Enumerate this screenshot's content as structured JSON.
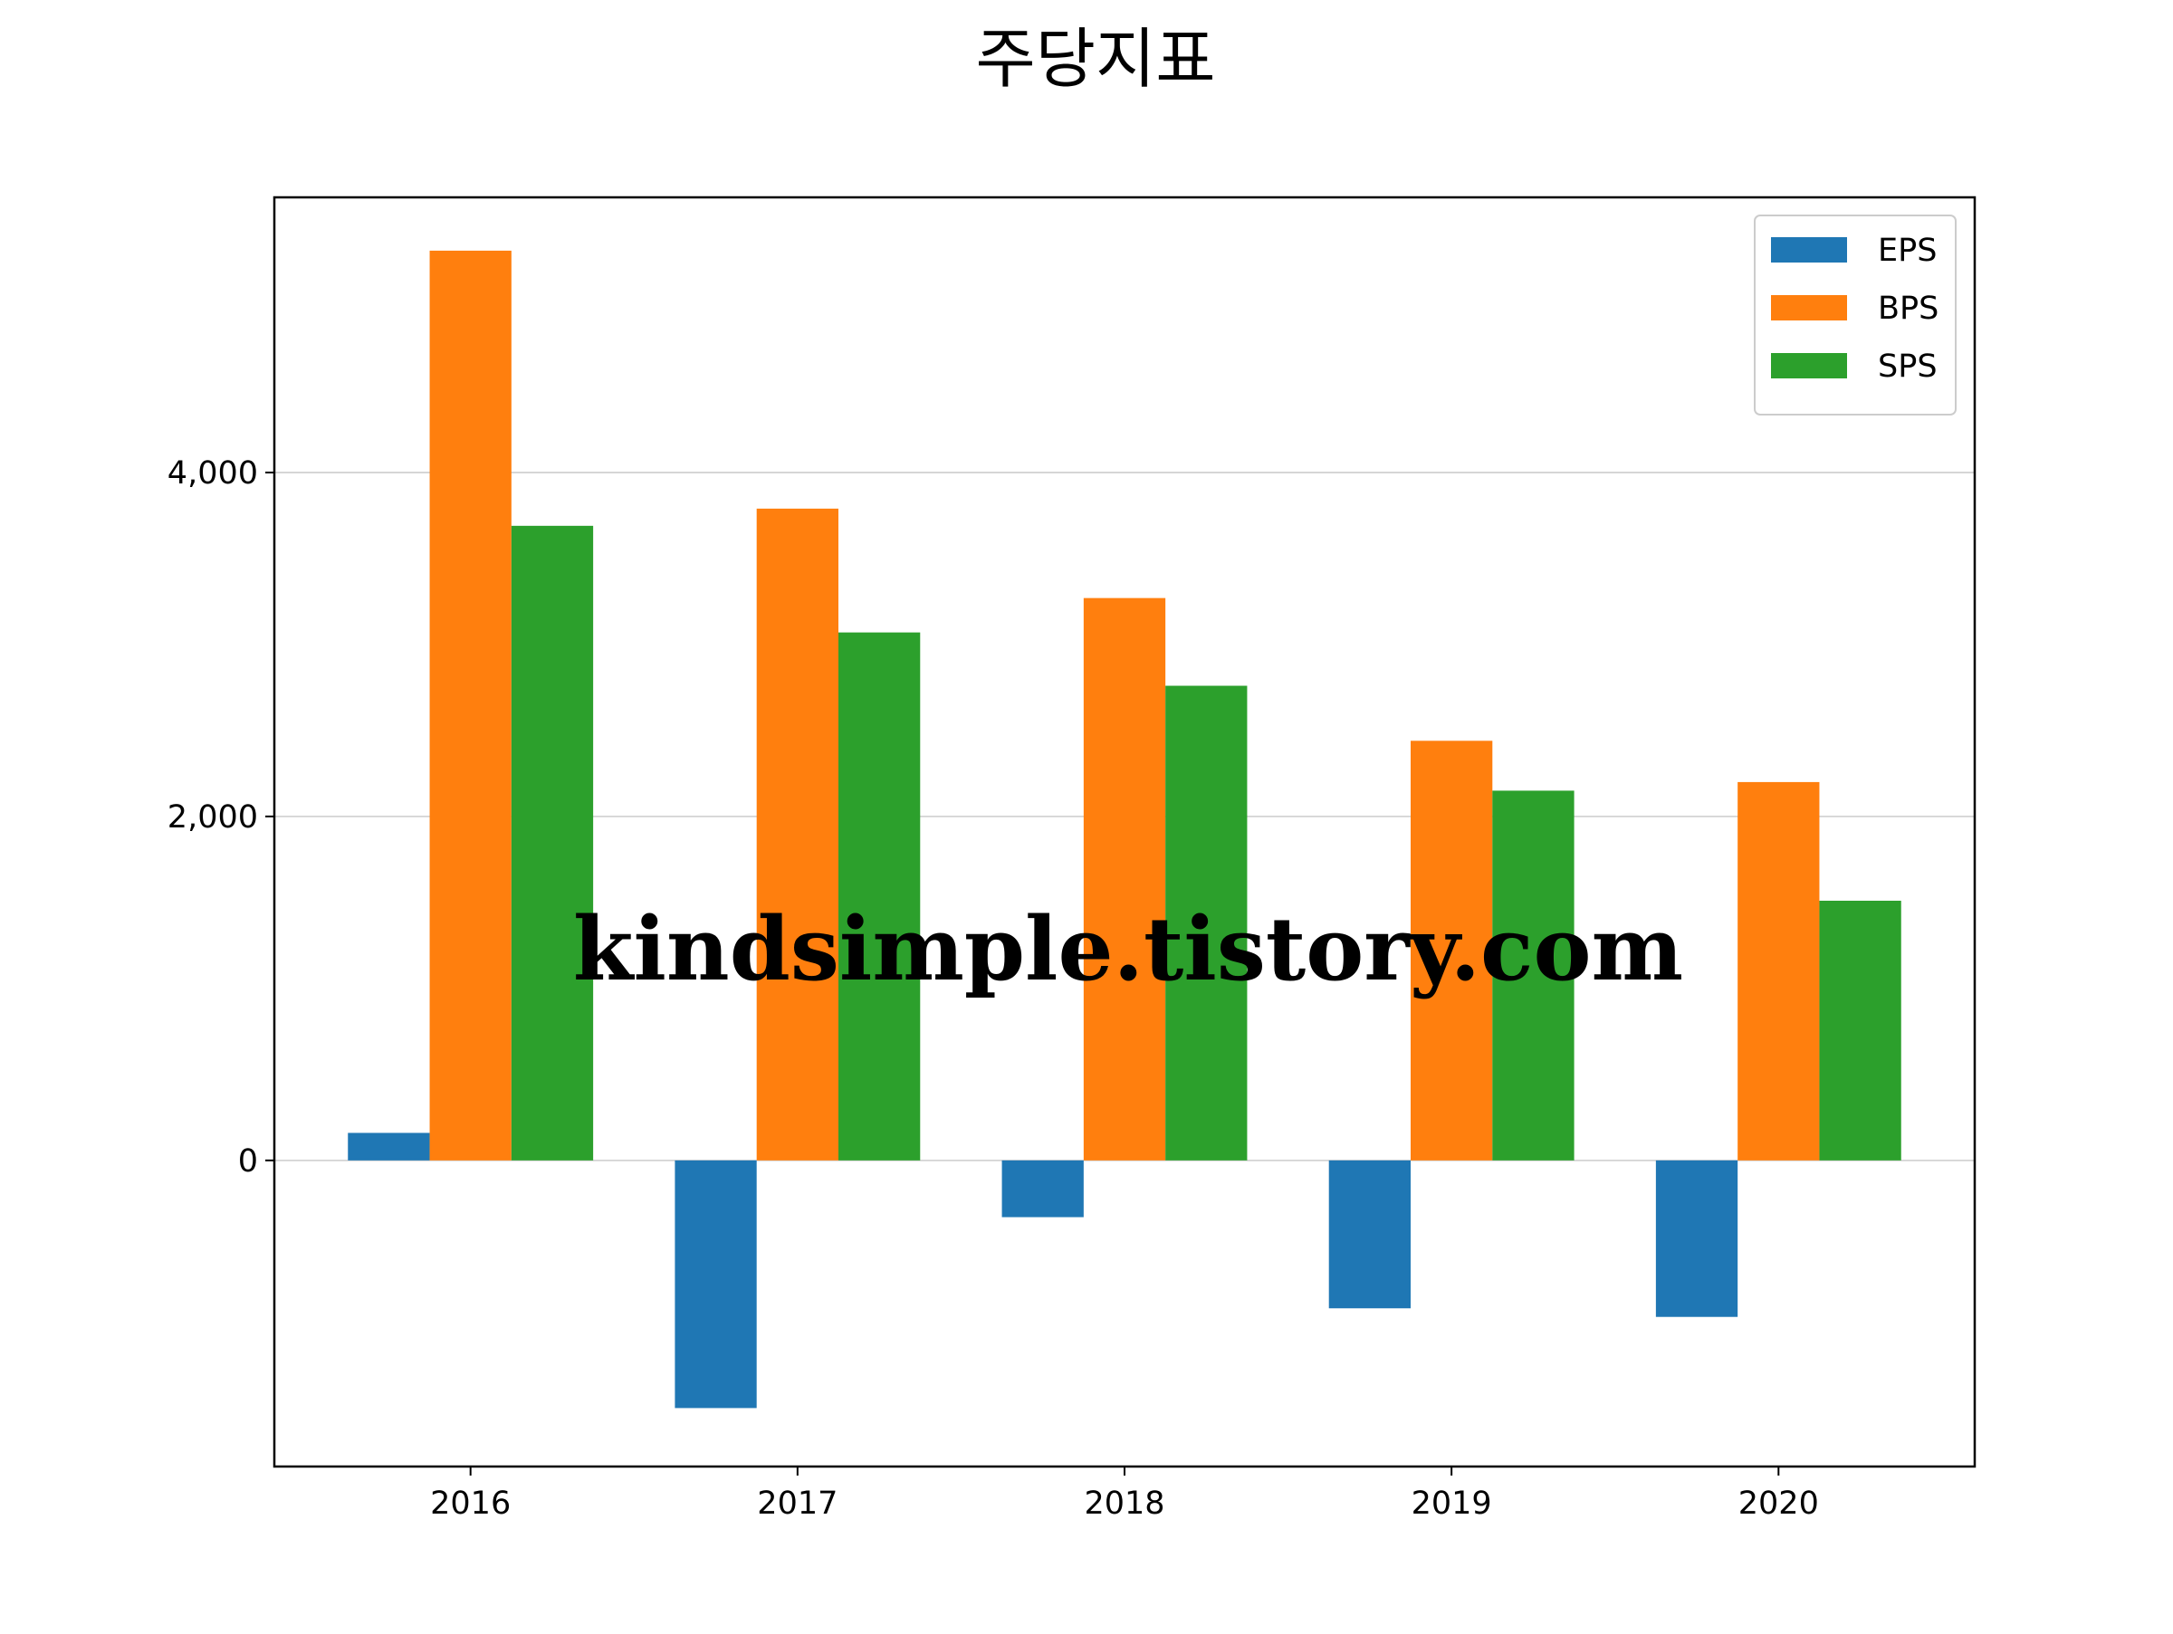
{
  "chart_data": {
    "type": "bar",
    "title": "주당지표",
    "xlabel": "",
    "ylabel": "",
    "categories": [
      "2016",
      "2017",
      "2018",
      "2019",
      "2020"
    ],
    "series": [
      {
        "name": "EPS",
        "color": "#1f77b4",
        "values": [
          160,
          -1440,
          -330,
          -860,
          -910
        ]
      },
      {
        "name": "BPS",
        "color": "#ff7f0e",
        "values": [
          5290,
          3790,
          3270,
          2440,
          2200
        ]
      },
      {
        "name": "SPS",
        "color": "#2ca02c",
        "values": [
          3690,
          3070,
          2760,
          2150,
          1510
        ]
      }
    ],
    "ylim": [
      -1780,
      5600
    ],
    "yticks": [
      0,
      2000,
      4000
    ],
    "ytick_labels": [
      "0",
      "2,000",
      "4,000"
    ],
    "grid": "horizontal",
    "legend_position": "top-right",
    "watermark": {
      "text": "kindsimple.tistory.com",
      "color": "#e2a6eb"
    }
  }
}
